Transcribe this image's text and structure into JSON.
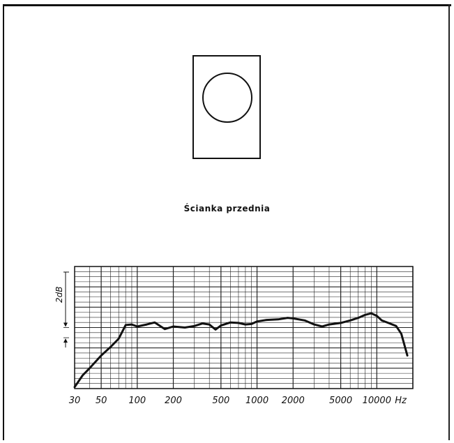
{
  "panel": {
    "label": "Ścianka przednia"
  },
  "chart_data": {
    "type": "line",
    "x_scale": "log",
    "xlim": [
      30,
      20000
    ],
    "x_tick_labels": [
      "30",
      "50",
      "100",
      "200",
      "500",
      "1000",
      "2000",
      "5000",
      "10000"
    ],
    "x_unit": "Hz",
    "scale_marker": "2dB",
    "grid": true,
    "line_color": "#111111",
    "series": [
      {
        "points": [
          [
            30,
            0.3
          ],
          [
            35,
            2.6
          ],
          [
            40,
            4.0
          ],
          [
            50,
            6.5
          ],
          [
            60,
            8.2
          ],
          [
            70,
            9.8
          ],
          [
            80,
            12.5
          ],
          [
            90,
            12.6
          ],
          [
            100,
            12.2
          ],
          [
            120,
            12.6
          ],
          [
            140,
            13.0
          ],
          [
            170,
            11.7
          ],
          [
            200,
            12.2
          ],
          [
            250,
            12.0
          ],
          [
            300,
            12.3
          ],
          [
            350,
            12.8
          ],
          [
            400,
            12.6
          ],
          [
            450,
            11.6
          ],
          [
            500,
            12.4
          ],
          [
            600,
            13.0
          ],
          [
            700,
            12.9
          ],
          [
            800,
            12.6
          ],
          [
            900,
            12.7
          ],
          [
            1000,
            13.2
          ],
          [
            1200,
            13.5
          ],
          [
            1500,
            13.6
          ],
          [
            1800,
            13.9
          ],
          [
            2000,
            13.8
          ],
          [
            2500,
            13.4
          ],
          [
            3000,
            12.6
          ],
          [
            3500,
            12.2
          ],
          [
            4000,
            12.6
          ],
          [
            5000,
            12.9
          ],
          [
            6000,
            13.4
          ],
          [
            7000,
            13.9
          ],
          [
            8000,
            14.5
          ],
          [
            9000,
            14.8
          ],
          [
            10000,
            14.3
          ],
          [
            11000,
            13.4
          ],
          [
            12500,
            12.9
          ],
          [
            14500,
            12.3
          ],
          [
            16000,
            10.8
          ],
          [
            18000,
            6.5
          ]
        ]
      }
    ]
  }
}
